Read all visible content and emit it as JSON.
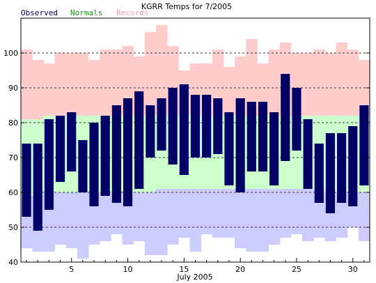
{
  "chart_data": {
    "type": "bar",
    "title": "KGRR Temps for 7/2005",
    "xlabel": "July 2005",
    "ylabel": "",
    "ylim": [
      40,
      110
    ],
    "xlim": [
      0.5,
      31.5
    ],
    "grid": "horizontal dashed",
    "yticks": [
      40,
      50,
      60,
      70,
      80,
      90,
      100
    ],
    "xticks": [
      5,
      10,
      15,
      20,
      25,
      30
    ],
    "legend": [
      {
        "name": "Observed",
        "color": "#000066"
      },
      {
        "name": "Normals",
        "color": "#228B22"
      },
      {
        "name": "Records",
        "color": "#E8A0B8"
      }
    ],
    "colors": {
      "observed": "#000066",
      "normals": "#CCFFCC",
      "records_high": "#FFCCCC",
      "records_low": "#CCCCFF"
    },
    "days": [
      1,
      2,
      3,
      4,
      5,
      6,
      7,
      8,
      9,
      10,
      11,
      12,
      13,
      14,
      15,
      16,
      17,
      18,
      19,
      20,
      21,
      22,
      23,
      24,
      25,
      26,
      27,
      28,
      29,
      30,
      31
    ],
    "observed_high": [
      74,
      74,
      81,
      82,
      83,
      75,
      80,
      82,
      85,
      87,
      89,
      85,
      87,
      90,
      91,
      88,
      88,
      87,
      83,
      87,
      86,
      86,
      83,
      94,
      90,
      81,
      74,
      77,
      77,
      79,
      85
    ],
    "observed_low": [
      53,
      49,
      55,
      63,
      66,
      60,
      56,
      59,
      57,
      56,
      61,
      70,
      72,
      68,
      65,
      70,
      70,
      71,
      62,
      60,
      66,
      66,
      62,
      69,
      72,
      61,
      57,
      54,
      57,
      56,
      62
    ],
    "normal_high": [
      81,
      81,
      82,
      82,
      82,
      82,
      82,
      82,
      82,
      82,
      82,
      82,
      82,
      82,
      82,
      82,
      82,
      82,
      82,
      82,
      82,
      82,
      82,
      82,
      82,
      82,
      82,
      82,
      82,
      82,
      82
    ],
    "normal_low": [
      59,
      59,
      60,
      60,
      60,
      60,
      60,
      60,
      60,
      60,
      60,
      60,
      61,
      61,
      61,
      61,
      61,
      61,
      61,
      61,
      61,
      61,
      61,
      61,
      61,
      61,
      61,
      60,
      60,
      60,
      60
    ],
    "record_high": [
      101,
      98,
      97,
      100,
      100,
      100,
      98,
      101,
      101,
      102,
      99,
      106,
      108,
      102,
      95,
      97,
      97,
      101,
      96,
      99,
      104,
      97,
      101,
      103,
      100,
      100,
      101,
      100,
      103,
      101,
      98
    ],
    "record_low": [
      44,
      43,
      43,
      45,
      44,
      41,
      45,
      46,
      48,
      45,
      46,
      42,
      42,
      45,
      47,
      43,
      48,
      47,
      47,
      44,
      43,
      43,
      45,
      47,
      48,
      46,
      47,
      46,
      47,
      50,
      46
    ]
  }
}
